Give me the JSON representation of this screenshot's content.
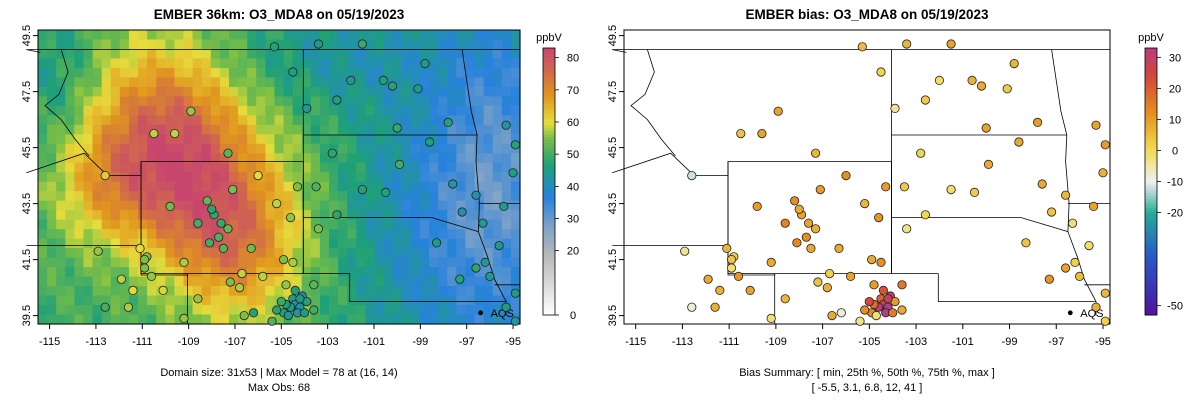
{
  "left_panel": {
    "title": "EMBER 36km: O3_MDA8 on 05/19/2023",
    "colorbar": {
      "unit": "ppbV",
      "ticks": [
        0,
        20,
        30,
        40,
        50,
        60,
        70,
        80
      ],
      "range": [
        0,
        83
      ]
    },
    "footer_line1": "Domain size: 31x53 | Max Model = 78 at (16, 14)",
    "footer_line2": "Max Obs: 68"
  },
  "right_panel": {
    "title": "EMBER bias: O3_MDA8 on 05/19/2023",
    "colorbar": {
      "unit": "ppbV",
      "ticks": [
        -50,
        -20,
        -10,
        0,
        10,
        20,
        30
      ],
      "range": [
        -53,
        33
      ]
    },
    "footer_line1": "Bias Summary: [ min, 25th %, 50th %, 75th %, max ]",
    "footer_line2": "[ -5.5,   3.1,   6.8,   12,   41 ]"
  },
  "map": {
    "x_ticks": [
      "-115",
      "-113",
      "-111",
      "-109",
      "-107",
      "-105",
      "-103",
      "-101",
      "-99",
      "-97",
      "-95"
    ],
    "y_ticks": [
      "39.5",
      "41.5",
      "43.5",
      "45.5",
      "47.5",
      "49.5"
    ],
    "marker_label": "AQS"
  },
  "colors": {
    "high": "#c0587a",
    "mid_warm": "#e4a21a",
    "mid": "#2e9e6e",
    "low": "#3a8fd6",
    "neutral": "#ffffff"
  }
}
